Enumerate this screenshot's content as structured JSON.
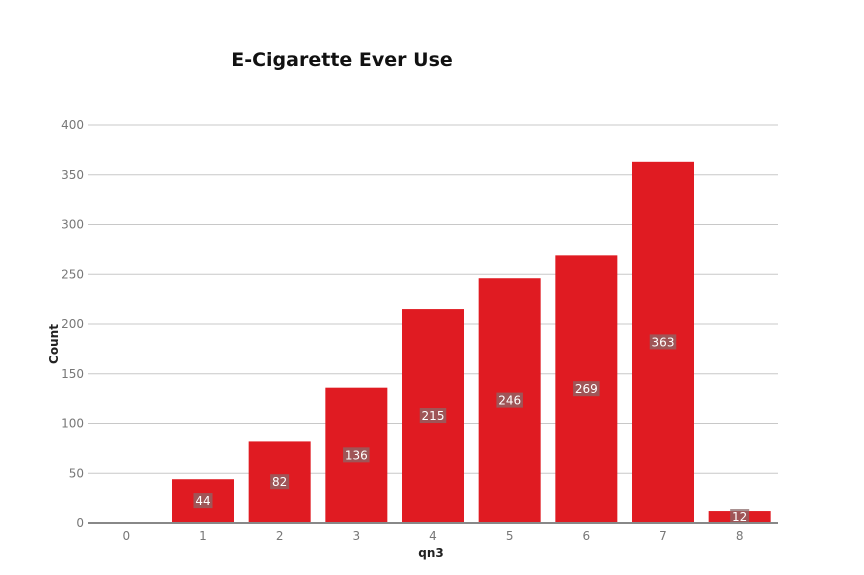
{
  "chart_data": {
    "type": "bar",
    "title": "E-Cigarette Ever Use",
    "xlabel": "qn3",
    "ylabel": "Count",
    "categories": [
      "0",
      "1",
      "2",
      "3",
      "4",
      "5",
      "6",
      "7",
      "8"
    ],
    "values": [
      0,
      44,
      82,
      136,
      215,
      246,
      269,
      363,
      12
    ],
    "data_labels": [
      "",
      "44",
      "82",
      "136",
      "215",
      "246",
      "269",
      "363",
      "12"
    ],
    "yticks": [
      0,
      50,
      100,
      150,
      200,
      250,
      300,
      350,
      400
    ],
    "ylim": [
      0,
      400
    ],
    "grid": true,
    "legend": "none",
    "bar_color": "#e01b22"
  }
}
